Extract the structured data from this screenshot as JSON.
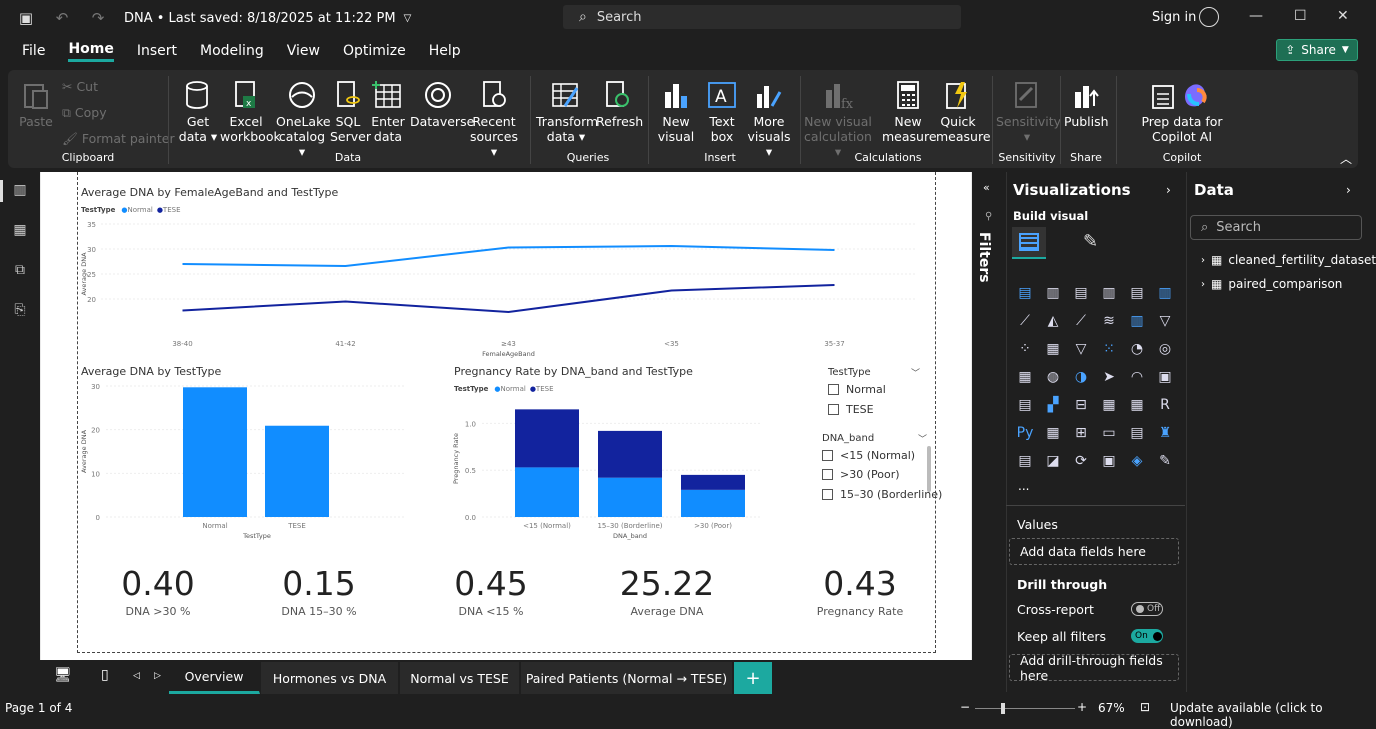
{
  "titlebar": {
    "doc_title": "DNA • Last saved: 8/18/2025 at 11:22 PM",
    "search": "Search",
    "signin": "Sign in"
  },
  "menu": [
    "File",
    "Home",
    "Insert",
    "Modeling",
    "View",
    "Optimize",
    "Help"
  ],
  "share": "Share",
  "ribbon": {
    "clipboard": {
      "paste": "Paste",
      "cut": "Cut",
      "copy": "Copy",
      "format": "Format painter",
      "label": "Clipboard"
    },
    "data": {
      "get": "Get data",
      "excel": "Excel workbook",
      "onelake": "OneLake catalog",
      "sql": "SQL Server",
      "enter": "Enter data",
      "dataverse": "Dataverse",
      "recent": "Recent sources",
      "label": "Data"
    },
    "queries": {
      "transform": "Transform data",
      "refresh": "Refresh",
      "label": "Queries"
    },
    "insert": {
      "newvisual": "New visual",
      "textbox": "Text box",
      "more": "More visuals",
      "label": "Insert"
    },
    "calc": {
      "newcalc": "New visual calculation",
      "newmeasure": "New measure",
      "quick": "Quick measure",
      "label": "Calculations"
    },
    "sens": {
      "btn": "Sensitivity",
      "label": "Sensitivity"
    },
    "share": {
      "publish": "Publish",
      "label": "Share"
    },
    "copilot": {
      "prep": "Prep data for Copilot AI",
      "label": "Copilot"
    }
  },
  "charts": {
    "line_title": "Average DNA by FemaleAgeBand and TestType",
    "bar1_title": "Average DNA by TestType",
    "bar2_title": "Pregnancy Rate by DNA_band and TestType",
    "legend_title": "TestType",
    "legend_normal": "Normal",
    "legend_tese": "TESE",
    "line_ylabel": "Average DNA",
    "line_xlabel": "FemaleAgeBand",
    "bar1_ylabel": "Average DNA",
    "bar1_xlabel": "TestType",
    "bar2_ylabel": "Pregnancy Rate",
    "bar2_xlabel": "DNA_band"
  },
  "chart_data": [
    {
      "type": "line",
      "title": "Average DNA by FemaleAgeBand and TestType",
      "xlabel": "FemaleAgeBand",
      "ylabel": "Average DNA",
      "categories": [
        "38-40",
        "41-42",
        "≥43",
        "<35",
        "35-37"
      ],
      "yticks": [
        20,
        25,
        30
      ],
      "ylim": [
        15,
        35
      ],
      "series": [
        {
          "name": "Normal",
          "values": [
            27,
            26.6,
            30.3,
            30.6,
            29.8
          ]
        },
        {
          "name": "TESE",
          "values": [
            17.7,
            19.5,
            17.4,
            21.7,
            22.8
          ]
        }
      ]
    },
    {
      "type": "bar",
      "title": "Average DNA by TestType",
      "xlabel": "TestType",
      "ylabel": "Average DNA",
      "categories": [
        "Normal",
        "TESE"
      ],
      "values": [
        29.7,
        20.9
      ],
      "yticks": [
        0,
        10,
        20,
        30
      ],
      "ylim": [
        0,
        30
      ]
    },
    {
      "type": "bar",
      "title": "Pregnancy Rate by DNA_band and TestType",
      "xlabel": "DNA_band",
      "ylabel": "Pregnancy Rate",
      "stacked": true,
      "categories": [
        "<15 (Normal)",
        "15–30 (Borderline)",
        ">30 (Poor)"
      ],
      "yticks": [
        "0.0",
        "0.5",
        "1.0"
      ],
      "ylim": [
        0,
        1.25
      ],
      "series": [
        {
          "name": "Normal",
          "values": [
            0.53,
            0.42,
            0.29
          ]
        },
        {
          "name": "TESE",
          "values": [
            0.62,
            0.5,
            0.16
          ]
        }
      ]
    }
  ],
  "slicer1": {
    "title": "TestType",
    "items": [
      "Normal",
      "TESE"
    ]
  },
  "slicer2": {
    "title": "DNA_band",
    "items": [
      "<15 (Normal)",
      ">30 (Poor)",
      "15–30 (Borderline)"
    ]
  },
  "kpis": [
    {
      "value": "0.40",
      "label": "DNA >30 %"
    },
    {
      "value": "0.15",
      "label": "DNA 15–30 %"
    },
    {
      "value": "0.45",
      "label": "DNA <15 %"
    },
    {
      "value": "25.22",
      "label": "Average DNA"
    },
    {
      "value": "0.43",
      "label": "Pregnancy Rate"
    }
  ],
  "filters": "Filters",
  "viz": {
    "title": "Visualizations",
    "build": "Build visual",
    "values": "Values",
    "add_fields": "Add data fields here",
    "drill": "Drill through",
    "cross": "Cross-report",
    "cross_state": "Off",
    "keep": "Keep all filters",
    "keep_state": "On",
    "add_drill": "Add drill-through fields here",
    "more": "..."
  },
  "data_pane": {
    "title": "Data",
    "search": "Search",
    "tables": [
      "cleaned_fertility_dataset",
      "paired_comparison"
    ]
  },
  "tabs": [
    "Overview",
    "Hormones vs DNA",
    "Normal vs TESE",
    "Paired Patients (Normal → TESE)"
  ],
  "status": {
    "page": "Page 1 of 4",
    "zoom": "67%",
    "update": "Update available (click to download)"
  },
  "colors": {
    "normal": "#118dff",
    "tese": "#12239e",
    "accent": "#1ca9a0"
  }
}
